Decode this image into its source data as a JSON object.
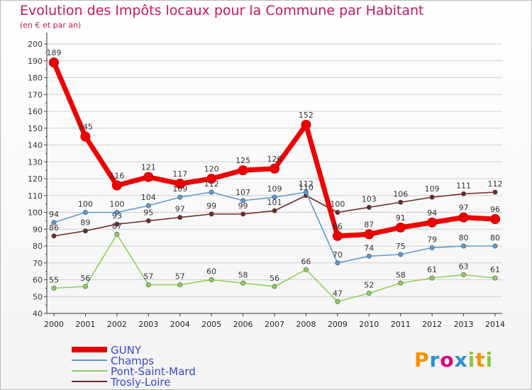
{
  "header": {
    "title": "Evolution des Impôts locaux pour la Commune par Habitant",
    "subtitle": "(en € et par an)"
  },
  "logo": {
    "text": "Proxiti"
  },
  "colors": {
    "title": "#c2185b",
    "legend_text": "#3a48c7",
    "grid": "#cfcfcf"
  },
  "chart_data": {
    "type": "line",
    "title": "Evolution des Impôts locaux pour la Commune par Habitant",
    "subtitle": "(en € et par an)",
    "x": [
      2000,
      2001,
      2002,
      2003,
      2004,
      2005,
      2006,
      2007,
      2008,
      2009,
      2010,
      2011,
      2012,
      2013,
      2014
    ],
    "ylim": [
      40,
      200
    ],
    "yticks": [
      40,
      50,
      60,
      70,
      80,
      90,
      100,
      110,
      120,
      130,
      140,
      150,
      160,
      170,
      180,
      190,
      200
    ],
    "grid": true,
    "legend_position": "bottom-left",
    "series": [
      {
        "name": "Pont-Saint-Mard",
        "color": "#8ccf5a",
        "values": [
          55,
          56,
          87,
          57,
          57,
          60,
          58,
          56,
          66,
          47,
          52,
          58,
          61,
          63,
          61
        ]
      },
      {
        "name": "Trosly-Loire",
        "color": "#6e2a2a",
        "values": [
          86,
          89,
          93,
          95,
          97,
          99,
          99,
          101,
          110,
          100,
          103,
          106,
          109,
          111,
          112
        ]
      },
      {
        "name": "Champs",
        "color": "#5b9bd5",
        "values": [
          94,
          100,
          100,
          104,
          109,
          112,
          107,
          109,
          112,
          70,
          74,
          75,
          79,
          80,
          80
        ]
      },
      {
        "name": "GUNY",
        "color": "#ee0000",
        "values": [
          189,
          145,
          116,
          121,
          117,
          120,
          125,
          126,
          152,
          86,
          87,
          91,
          94,
          97,
          96
        ]
      }
    ],
    "legend_order": [
      "GUNY",
      "Champs",
      "Pont-Saint-Mard",
      "Trosly-Loire"
    ]
  }
}
